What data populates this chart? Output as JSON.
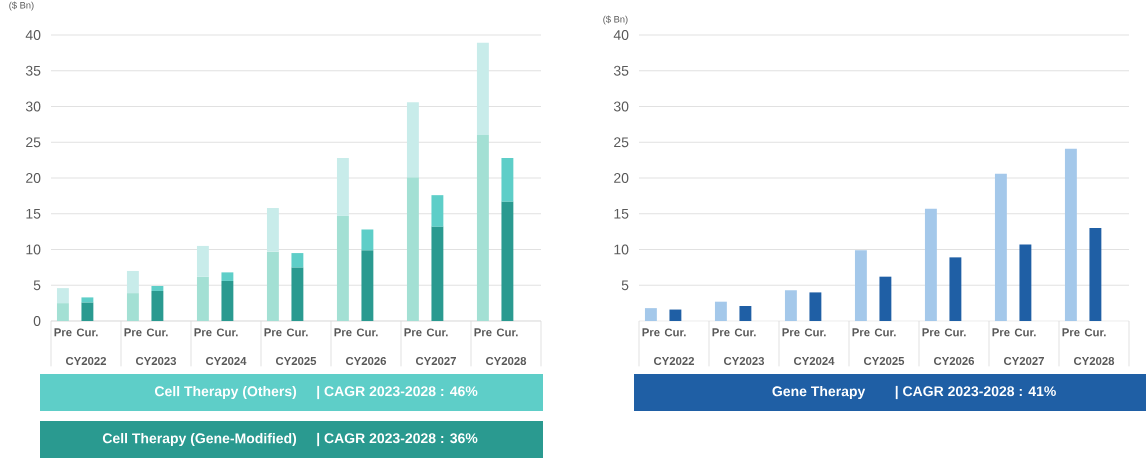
{
  "chart_data": [
    {
      "type": "bar",
      "stacked": true,
      "ylabel": "($ Bn)",
      "categories": [
        "Pre",
        "Cur.",
        "Pre",
        "Cur.",
        "Pre",
        "Cur.",
        "Pre",
        "Cur.",
        "Pre",
        "Cur.",
        "Pre",
        "Cur.",
        "Pre",
        "Cur."
      ],
      "series": [
        {
          "name": "Cell Therapy (Gene-Modified)",
          "color": "#2a9a90",
          "colors": [
            "#a3e0d4",
            "#2a9a90",
            "#a3e0d4",
            "#2a9a90",
            "#a3e0d4",
            "#2a9a90",
            "#a3e0d4",
            "#2a9a90",
            "#a3e0d4",
            "#2a9a90",
            "#a3e0d4",
            "#2a9a90",
            "#a3e0d4",
            "#2a9a90"
          ],
          "values": [
            2.5,
            2.6,
            3.9,
            4.2,
            6.2,
            5.6,
            9.7,
            7.5,
            14.7,
            9.9,
            20.1,
            13.2,
            26.0,
            16.7
          ]
        },
        {
          "name": "Cell Therapy (Others)",
          "color": "#5ecec8",
          "colors": [
            "#c8ecea",
            "#5ecec8",
            "#c8ecea",
            "#5ecec8",
            "#c8ecea",
            "#5ecec8",
            "#c8ecea",
            "#5ecec8",
            "#c8ecea",
            "#5ecec8",
            "#c8ecea",
            "#5ecec8",
            "#c8ecea",
            "#5ecec8"
          ],
          "values": [
            2.1,
            0.7,
            3.1,
            0.7,
            4.3,
            1.2,
            6.1,
            2.0,
            8.1,
            2.9,
            10.5,
            4.4,
            12.9,
            6.1
          ]
        }
      ],
      "ylim": [
        0,
        40
      ],
      "yticks": [
        0,
        5,
        10,
        15,
        20,
        25,
        30,
        35,
        40
      ],
      "grid": "y",
      "legend": "bottom",
      "annotations": [
        "CY2022",
        "CY2023",
        "CY2024",
        "CY2025",
        "CY2026",
        "CY2027",
        "CY2028",
        "|  CAGR 2023-2028 : 46%",
        "|  CAGR 2023-2028 : 36%"
      ]
    },
    {
      "type": "bar",
      "ylabel": "($ Bn)",
      "categories": [
        "Pre",
        "Cur.",
        "Pre",
        "Cur.",
        "Pre",
        "Cur.",
        "Pre",
        "Cur.",
        "Pre",
        "Cur.",
        "Pre",
        "Cur.",
        "Pre",
        "Cur."
      ],
      "series": [
        {
          "name": "Gene Therapy",
          "color": "#1f5fa5",
          "colors": [
            "#a4c8ea",
            "#1f5fa5",
            "#a4c8ea",
            "#1f5fa5",
            "#a4c8ea",
            "#1f5fa5",
            "#a4c8ea",
            "#1f5fa5",
            "#a4c8ea",
            "#1f5fa5",
            "#a4c8ea",
            "#1f5fa5",
            "#a4c8ea",
            "#1f5fa5"
          ],
          "values": [
            1.8,
            1.6,
            2.7,
            2.1,
            4.3,
            4.0,
            9.9,
            6.2,
            15.7,
            8.9,
            20.6,
            10.7,
            24.1,
            13.0
          ]
        }
      ],
      "ylim": [
        0,
        40
      ],
      "yticks": [
        5,
        10,
        15,
        20,
        25,
        30,
        35,
        40
      ],
      "grid": "y",
      "legend": "bottom",
      "annotations": [
        "CY2022",
        "CY2023",
        "CY2024",
        "CY2025",
        "CY2026",
        "CY2027",
        "CY2028",
        "|   CAGR 2023-2028 : 41%"
      ]
    }
  ]
}
